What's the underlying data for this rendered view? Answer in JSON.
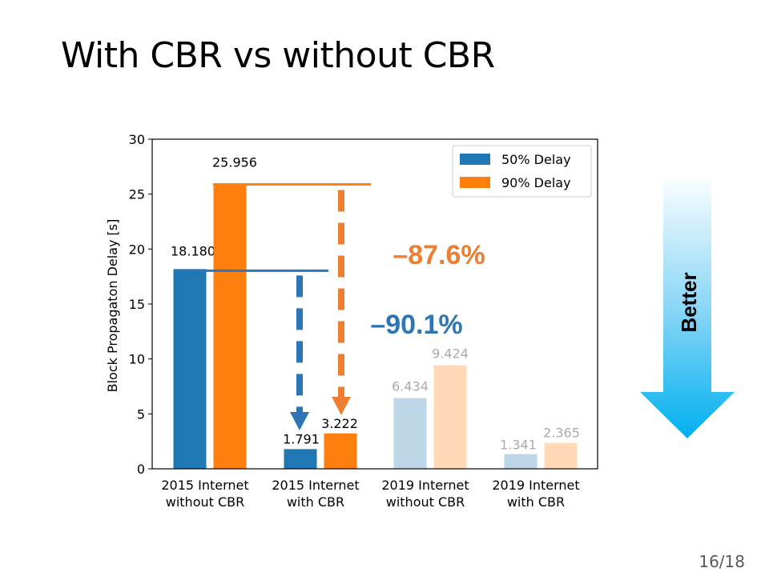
{
  "slide": {
    "title": "With CBR vs without CBR",
    "page_number": "16/18"
  },
  "better_label": "Better",
  "colors": {
    "blue": "#1f77b4",
    "orange": "#ff7f0e",
    "faded_blue": "#bcd6e8",
    "faded_orange": "#ffd8b6",
    "faded_text": "#aaaaaa",
    "better_arrow_top": "#ffffff",
    "better_arrow_bottom": "#00b0f0"
  },
  "annotations": {
    "reduction_90pct_delay": "–87.6%",
    "reduction_50pct_delay": "–90.1%"
  },
  "chart_data": {
    "type": "bar",
    "ylabel": "Block Propagaton Delay [s]",
    "ylim": [
      0,
      30
    ],
    "yticks": [
      0,
      5,
      10,
      15,
      20,
      25,
      30
    ],
    "categories": [
      [
        "2015 Internet",
        "without CBR"
      ],
      [
        "2015 Internet",
        "with CBR"
      ],
      [
        "2019 Internet",
        "without CBR"
      ],
      [
        "2019 Internet",
        "with CBR"
      ]
    ],
    "faded_categories": [
      2,
      3
    ],
    "series": [
      {
        "name": "50% Delay",
        "values": [
          18.18,
          1.791,
          6.434,
          1.341
        ],
        "labels": [
          "18.180",
          "1.791",
          "6.434",
          "1.341"
        ]
      },
      {
        "name": "90% Delay",
        "values": [
          25.956,
          3.222,
          9.424,
          2.365
        ],
        "labels": [
          "25.956",
          "3.222",
          "9.424",
          "2.365"
        ]
      }
    ],
    "legend_position": "top-right"
  }
}
